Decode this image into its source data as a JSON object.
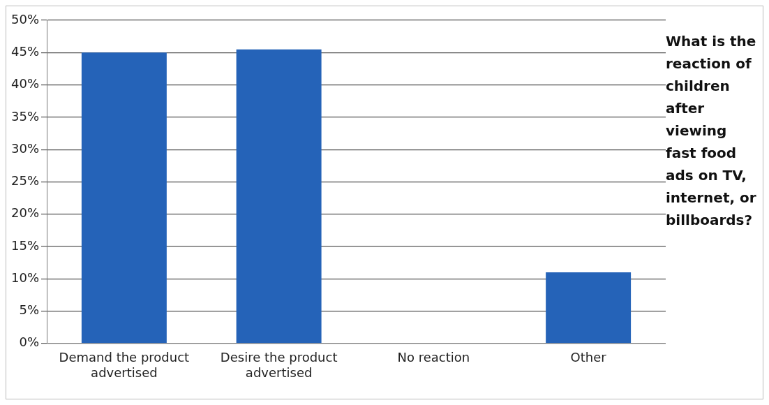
{
  "chart_data": {
    "type": "bar",
    "title": "What is the reaction of children after viewing fast food ads on TV, internet, or billboards?",
    "categories": [
      "Demand the product advertised",
      "Desire the product advertised",
      "No reaction",
      "Other"
    ],
    "values": [
      45,
      45.5,
      0,
      11
    ],
    "color": "#2563b8",
    "ylim": [
      0,
      50
    ],
    "yticks": [
      {
        "value": 0,
        "label": "0%"
      },
      {
        "value": 5,
        "label": "5%"
      },
      {
        "value": 10,
        "label": "10%"
      },
      {
        "value": 15,
        "label": "15%"
      },
      {
        "value": 20,
        "label": "20%"
      },
      {
        "value": 25,
        "label": "25%"
      },
      {
        "value": 30,
        "label": "30%"
      },
      {
        "value": 35,
        "label": "35%"
      },
      {
        "value": 40,
        "label": "40%"
      },
      {
        "value": 45,
        "label": "45%"
      },
      {
        "value": 50,
        "label": "50%"
      }
    ],
    "grid": "y"
  }
}
